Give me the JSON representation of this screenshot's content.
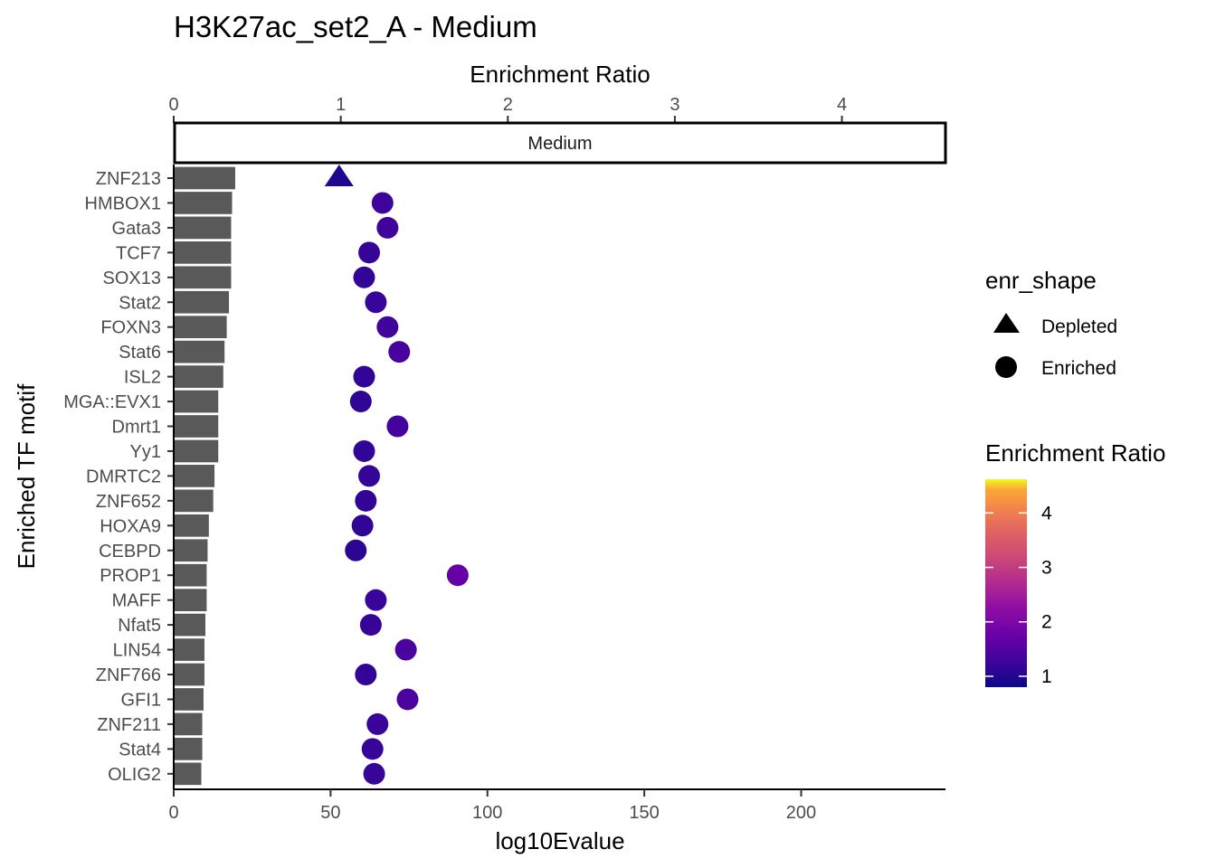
{
  "chart_data": {
    "type": "bar+scatter",
    "title": "H3K27ac_set2_A - Medium",
    "facet_label": "Medium",
    "xlabel": "log10Evalue",
    "ylabel": "Enriched TF motif",
    "x_bottom": {
      "label": "log10Evalue",
      "lim": [
        0,
        246
      ],
      "ticks": [
        0,
        50,
        100,
        150,
        200
      ]
    },
    "x_top": {
      "label": "Enrichment Ratio",
      "lim": [
        0,
        4.62
      ],
      "ticks": [
        0,
        1,
        2,
        3,
        4
      ]
    },
    "categories": [
      "ZNF213",
      "HMBOX1",
      "Gata3",
      "TCF7",
      "SOX13",
      "Stat2",
      "FOXN3",
      "Stat6",
      "ISL2",
      "MGA::EVX1",
      "Dmrt1",
      "Yy1",
      "DMRTC2",
      "ZNF652",
      "HOXA9",
      "CEBPD",
      "PROP1",
      "MAFF",
      "Nfat5",
      "LIN54",
      "ZNF766",
      "GFI1",
      "ZNF211",
      "Stat4",
      "OLIG2"
    ],
    "bar_series": {
      "name": "log10Evalue",
      "values": [
        19.6,
        18.6,
        18.3,
        18.3,
        18.3,
        17.6,
        16.9,
        16.2,
        15.8,
        14.2,
        14.2,
        14.2,
        13.0,
        12.6,
        11.2,
        10.8,
        10.5,
        10.5,
        10.1,
        9.8,
        9.8,
        9.5,
        9.1,
        9.1,
        8.8
      ],
      "color": "#595959"
    },
    "point_series": {
      "name": "Enrichment Ratio",
      "values": [
        0.99,
        1.25,
        1.28,
        1.17,
        1.14,
        1.21,
        1.28,
        1.35,
        1.14,
        1.12,
        1.34,
        1.14,
        1.17,
        1.15,
        1.13,
        1.09,
        1.7,
        1.21,
        1.18,
        1.39,
        1.15,
        1.4,
        1.22,
        1.19,
        1.2
      ],
      "shapes": [
        "Depleted",
        "Enriched",
        "Enriched",
        "Enriched",
        "Enriched",
        "Enriched",
        "Enriched",
        "Enriched",
        "Enriched",
        "Enriched",
        "Enriched",
        "Enriched",
        "Enriched",
        "Enriched",
        "Enriched",
        "Enriched",
        "Enriched",
        "Enriched",
        "Enriched",
        "Enriched",
        "Enriched",
        "Enriched",
        "Enriched",
        "Enriched",
        "Enriched"
      ]
    },
    "legend_shape": {
      "title": "enr_shape",
      "items": [
        {
          "label": "Depleted",
          "shape": "triangle"
        },
        {
          "label": "Enriched",
          "shape": "circle"
        }
      ]
    },
    "legend_color": {
      "title": "Enrichment Ratio",
      "range": [
        0.8,
        4.62
      ],
      "ticks": [
        1,
        2,
        3,
        4
      ],
      "colormap": "plasma"
    }
  }
}
